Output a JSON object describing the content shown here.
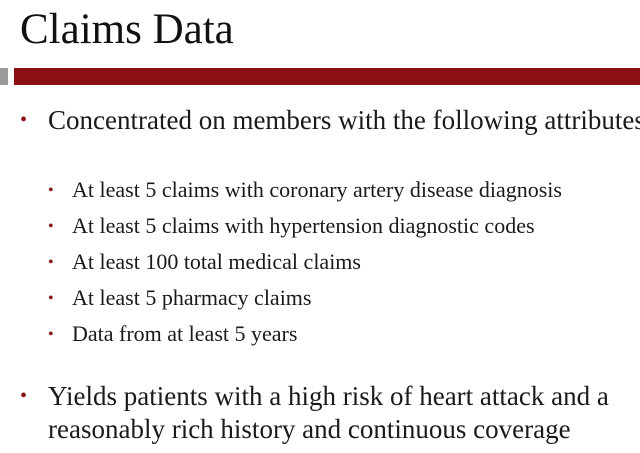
{
  "title": "Claims Data",
  "colors": {
    "accent_bar": "#8b1014",
    "accent_square": "#9a9a9a",
    "bullet": "#8b1014"
  },
  "bullets": [
    {
      "text": "Concentrated on members with the following attributes",
      "sub_items": [
        "At least 5 claims with coronary artery disease diagnosis",
        "At least 5 claims with hypertension diagnostic codes",
        "At least 100 total medical claims",
        "At least 5 pharmacy claims",
        "Data from at least 5 years"
      ]
    },
    {
      "text": "Yields patients with a high risk of heart attack and a reasonably rich history and continuous coverage",
      "sub_items": []
    }
  ]
}
